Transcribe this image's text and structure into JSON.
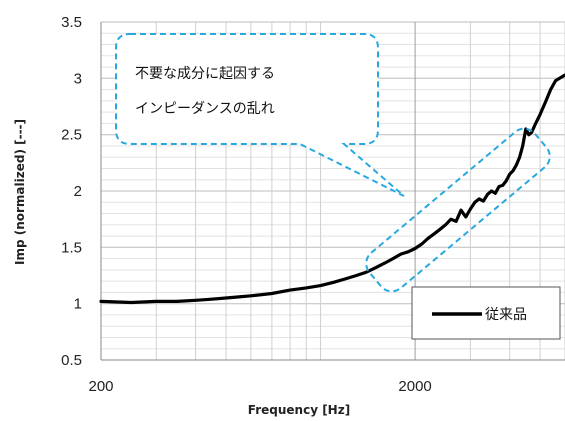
{
  "chart_data": {
    "type": "line",
    "title": "",
    "xlabel": "Frequency [Hz]",
    "ylabel": "Imp (normalized) [---]",
    "x_scale": "log",
    "xlim": [
      200,
      6000
    ],
    "ylim": [
      0.5,
      3.5
    ],
    "x_tick_labels": [
      "200",
      "2000"
    ],
    "y_tick_labels": [
      "3.5",
      "3",
      "2.5",
      "2",
      "1.5",
      "1",
      "0.5"
    ],
    "grid": true,
    "legend_position": "bottom-right",
    "series": [
      {
        "name": "従来品",
        "color": "#000000",
        "points": [
          [
            200,
            1.02
          ],
          [
            250,
            1.01
          ],
          [
            300,
            1.02
          ],
          [
            350,
            1.02
          ],
          [
            400,
            1.03
          ],
          [
            450,
            1.04
          ],
          [
            500,
            1.05
          ],
          [
            550,
            1.06
          ],
          [
            600,
            1.07
          ],
          [
            700,
            1.09
          ],
          [
            800,
            1.12
          ],
          [
            900,
            1.14
          ],
          [
            1000,
            1.16
          ],
          [
            1100,
            1.19
          ],
          [
            1200,
            1.22
          ],
          [
            1300,
            1.25
          ],
          [
            1400,
            1.28
          ],
          [
            1500,
            1.32
          ],
          [
            1600,
            1.36
          ],
          [
            1700,
            1.4
          ],
          [
            1800,
            1.44
          ],
          [
            1900,
            1.46
          ],
          [
            2000,
            1.49
          ],
          [
            2100,
            1.53
          ],
          [
            2200,
            1.58
          ],
          [
            2300,
            1.62
          ],
          [
            2400,
            1.66
          ],
          [
            2500,
            1.7
          ],
          [
            2600,
            1.75
          ],
          [
            2700,
            1.73
          ],
          [
            2800,
            1.83
          ],
          [
            2900,
            1.77
          ],
          [
            3000,
            1.84
          ],
          [
            3100,
            1.9
          ],
          [
            3200,
            1.93
          ],
          [
            3300,
            1.91
          ],
          [
            3400,
            1.97
          ],
          [
            3500,
            2.0
          ],
          [
            3600,
            1.98
          ],
          [
            3700,
            2.04
          ],
          [
            3800,
            2.05
          ],
          [
            3900,
            2.09
          ],
          [
            4000,
            2.15
          ],
          [
            4100,
            2.18
          ],
          [
            4200,
            2.23
          ],
          [
            4300,
            2.3
          ],
          [
            4400,
            2.4
          ],
          [
            4500,
            2.55
          ],
          [
            4600,
            2.5
          ],
          [
            4700,
            2.52
          ],
          [
            4800,
            2.58
          ],
          [
            5000,
            2.68
          ],
          [
            5200,
            2.79
          ],
          [
            5400,
            2.9
          ],
          [
            5600,
            2.98
          ],
          [
            6000,
            3.03
          ]
        ]
      }
    ],
    "annotation": {
      "lines": [
        "不要な成分に起因する",
        "インピーダンスの乱れ"
      ],
      "color": "#29a8e0"
    }
  }
}
